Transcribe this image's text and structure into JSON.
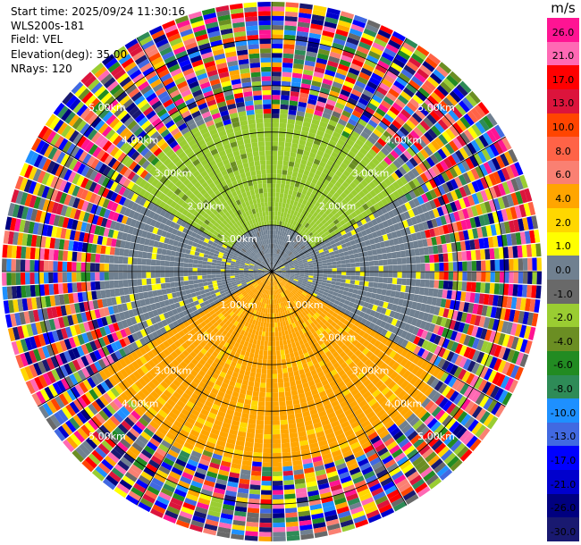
{
  "header": {
    "start_time_label": "Start time:",
    "start_time": "2025/09/24 11:30:16",
    "station": "WLS200s-181",
    "field_label": "Field:",
    "field": "VEL",
    "elevation_label": "Elevation(deg):",
    "elevation": "35.00",
    "nrays_label": "NRays:",
    "nrays": "120"
  },
  "chart_data": {
    "type": "heatmap",
    "projection": "polar-ppi",
    "field": "VEL",
    "unit": "m/s",
    "n_rays": 120,
    "elevation_deg": 35.0,
    "max_range_km": 5.8,
    "range_rings_km": [
      1.0,
      2.0,
      3.0,
      4.0,
      5.0
    ],
    "range_ring_labels": [
      "1.00km",
      "2.00km",
      "3.00km",
      "4.00km",
      "5.00km"
    ],
    "spoke_step_deg": 30,
    "valid_range_limit_km": {
      "north": 3.5,
      "south": 4.3
    },
    "sector_values_ms": [
      {
        "azimuth_from_deg": 300,
        "azimuth_to_deg": 60,
        "range_to_km": 1.0,
        "value": 0.0
      },
      {
        "azimuth_from_deg": 300,
        "azimuth_to_deg": 60,
        "range_to_km": 3.5,
        "value": -2.0
      },
      {
        "azimuth_from_deg": 60,
        "azimuth_to_deg": 120,
        "range_to_km": 3.5,
        "value": 0.0
      },
      {
        "azimuth_from_deg": 240,
        "azimuth_to_deg": 300,
        "range_to_km": 3.5,
        "value": 0.0
      },
      {
        "azimuth_from_deg": 120,
        "azimuth_to_deg": 240,
        "range_to_km": 4.3,
        "value": 4.0
      }
    ],
    "colorbar": {
      "unit": "m/s",
      "levels": [
        "26.0",
        "21.0",
        "17.0",
        "13.0",
        "10.0",
        "8.0",
        "6.0",
        "4.0",
        "2.0",
        "1.0",
        "0.0",
        "-1.0",
        "-2.0",
        "-4.0",
        "-6.0",
        "-8.0",
        "-10.0",
        "-13.0",
        "-17.0",
        "-21.0",
        "-26.0",
        "-30.0"
      ],
      "colors": [
        "#ff1493",
        "#ff69b4",
        "#ff0000",
        "#dc143c",
        "#ff4500",
        "#ff6347",
        "#fa8072",
        "#ffa500",
        "#ffd700",
        "#ffff00",
        "#708090",
        "#696969",
        "#9acd32",
        "#6b8e23",
        "#228b22",
        "#2e8b57",
        "#1e90ff",
        "#4169e1",
        "#0000ff",
        "#0000cd",
        "#000080",
        "#191970"
      ]
    }
  }
}
